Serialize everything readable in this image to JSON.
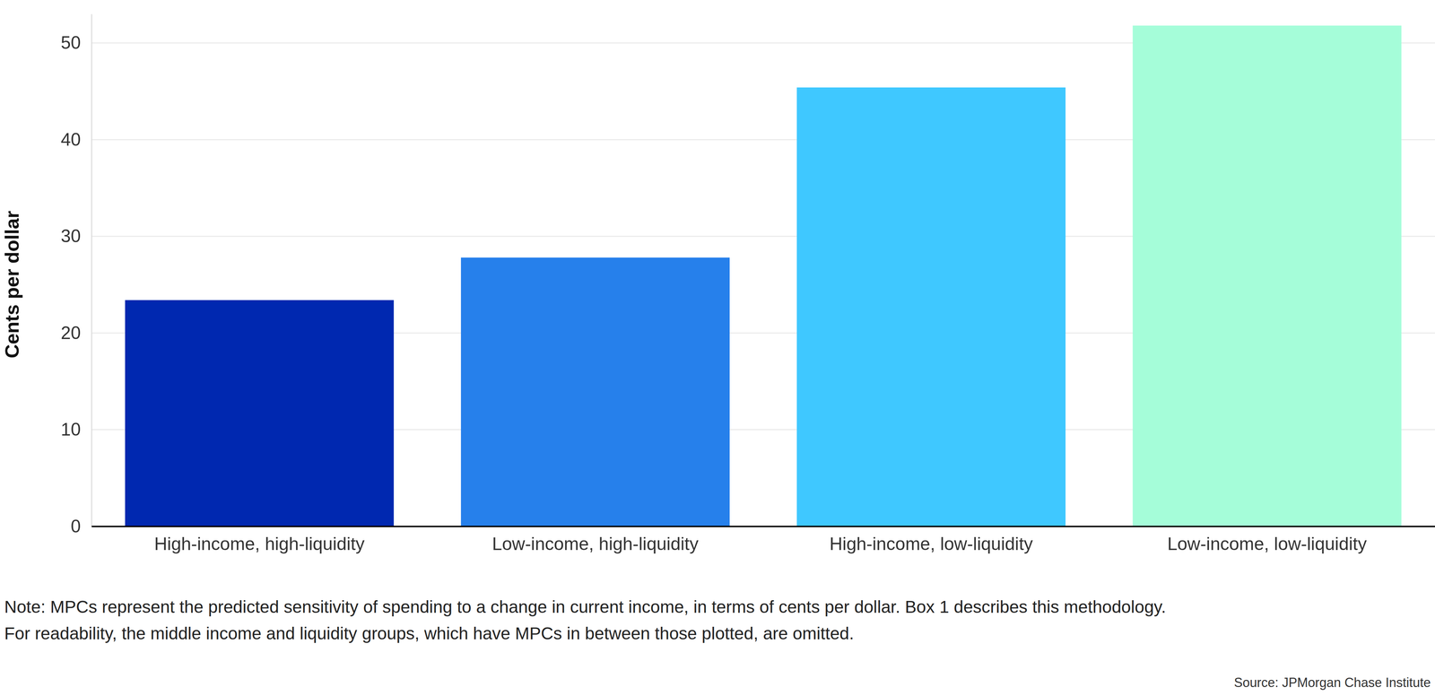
{
  "chart_data": {
    "type": "bar",
    "y_label": "Cents per dollar",
    "categories": [
      "High-income, high-liquidity",
      "Low-income, high-liquidity",
      "High-income, low-liquidity",
      "Low-income, low-liquidity"
    ],
    "values": [
      23.4,
      27.8,
      45.4,
      51.8
    ],
    "colors": [
      "#0028b0",
      "#2680eb",
      "#3fc8ff",
      "#a5fdd9"
    ],
    "ylim": [
      0,
      53
    ],
    "yticks": [
      0,
      10,
      20,
      30,
      40,
      50
    ],
    "grid": true,
    "notes": [
      "Note: MPCs represent the predicted sensitivity of spending to a change in current income, in terms of cents per dollar. Box 1 describes this methodology.",
      "For readability, the middle income and liquidity groups, which have MPCs in between those plotted, are omitted."
    ],
    "source": "Source: JPMorgan Chase Institute"
  }
}
